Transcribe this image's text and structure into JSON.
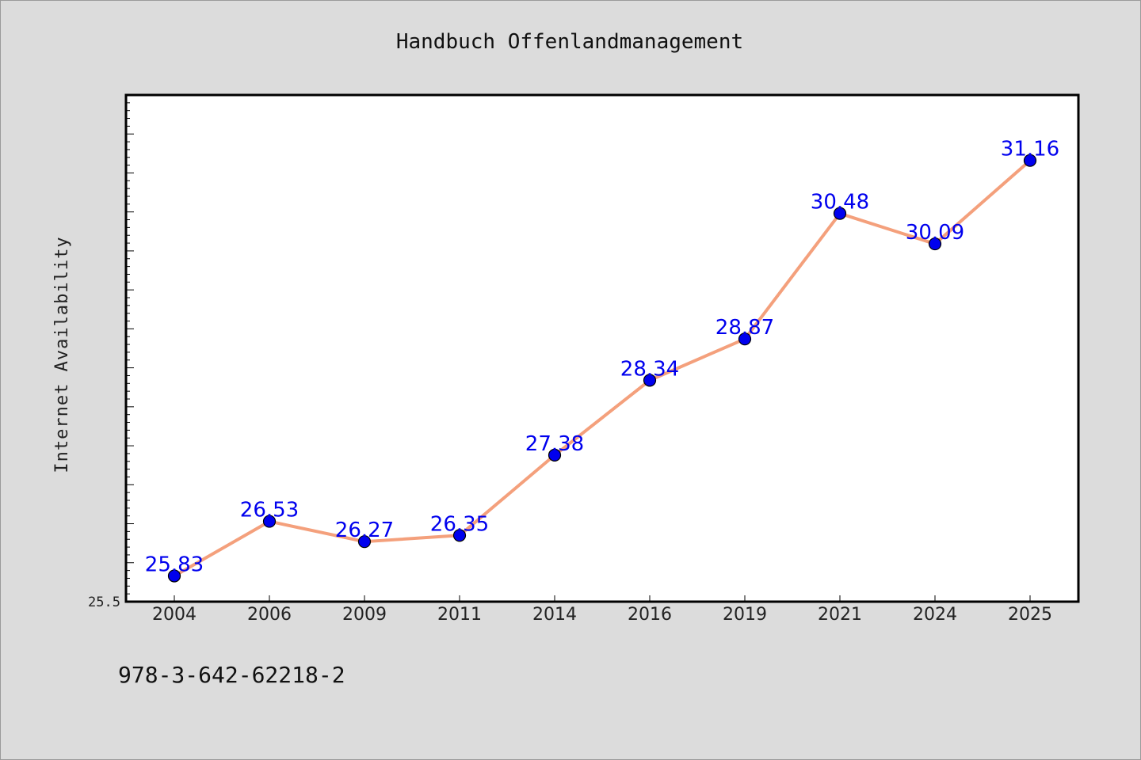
{
  "chart_data": {
    "type": "line",
    "title": "Handbuch Offenlandmanagement",
    "ylabel": "Internet Availability",
    "xlabel": "",
    "categories": [
      "2004",
      "2006",
      "2009",
      "2011",
      "2014",
      "2016",
      "2019",
      "2021",
      "2024",
      "2025"
    ],
    "series": [
      {
        "values": [
          25.83,
          26.53,
          26.27,
          26.35,
          27.38,
          28.34,
          28.87,
          30.48,
          30.09,
          31.16
        ],
        "labels": [
          "25.83",
          "26.53",
          "26.27",
          "26.35",
          "27.38",
          "28.34",
          "28.87",
          "30.48",
          "30.09",
          "31.16"
        ]
      }
    ],
    "ylim": [
      25.5,
      32.0
    ],
    "y_tick_labels": [
      "25.5"
    ],
    "grid": false,
    "colors": {
      "line": "#f4a07c",
      "marker": "#0000ee",
      "data_label": "#0000ee",
      "plot_background": "#ffffff",
      "figure_background": "#dcdcdc"
    }
  },
  "footer": {
    "isbn": "978-3-642-62218-2"
  }
}
